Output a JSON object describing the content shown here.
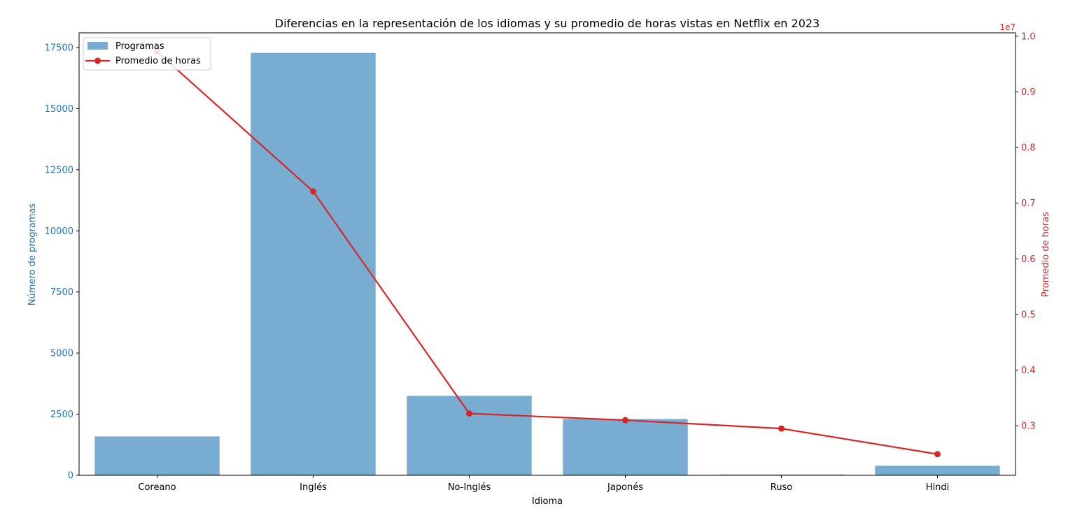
{
  "chart_data": {
    "type": "bar",
    "title": "Diferencias en la representación de los idiomas y su promedio de horas vistas en Netflix en 2023",
    "xlabel": "Idioma",
    "ylabel_left": "Número de programas",
    "ylabel_right": "Promedio de horas",
    "right_axis_offset_label": "1e7",
    "categories": [
      "Coreano",
      "Inglés",
      "No-Inglés",
      "Japonés",
      "Ruso",
      "Hindi"
    ],
    "series": [
      {
        "name": "Programas",
        "type": "bar",
        "axis": "left",
        "color": "#78acd1",
        "values": [
          1590,
          17280,
          3250,
          2300,
          30,
          390
        ]
      },
      {
        "name": "Promedio de horas",
        "type": "line",
        "axis": "right",
        "color": "#d62728",
        "values": [
          9720000,
          7210000,
          3220000,
          3100000,
          2950000,
          2490000
        ]
      }
    ],
    "ylim_left": [
      0,
      18100
    ],
    "ylim_right": [
      2110000,
      10060000
    ],
    "yticks_left": [
      0,
      2500,
      5000,
      7500,
      10000,
      12500,
      15000,
      17500
    ],
    "yticks_left_labels": [
      "0",
      "2500",
      "5000",
      "7500",
      "10000",
      "12500",
      "15000",
      "17500"
    ],
    "yticks_right": [
      3000000,
      4000000,
      5000000,
      6000000,
      7000000,
      8000000,
      9000000,
      10000000
    ],
    "yticks_right_labels": [
      "0.3",
      "0.4",
      "0.5",
      "0.6",
      "0.7",
      "0.8",
      "0.9",
      "1.0"
    ],
    "left_axis_color": "#1f77b4",
    "right_axis_color": "#d62728",
    "legend_position": "top-left",
    "grid": false
  }
}
